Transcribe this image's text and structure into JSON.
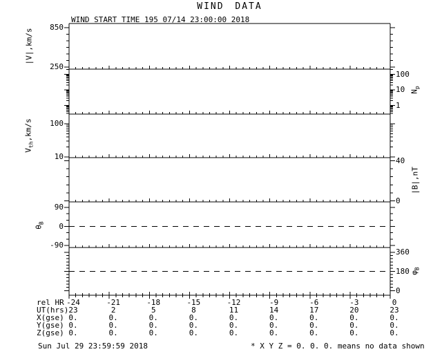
{
  "title": "WIND DATA",
  "subtitle": "WIND START TIME 195 07/14 23:00:00 2018",
  "footer": {
    "timestamp": "Sun Jul 29 23:59:59 2018",
    "note": "* X Y Z = 0. 0. 0. means no data shown"
  },
  "chart_data": {
    "type": "line",
    "title": "WIND DATA",
    "subtitle": "WIND START TIME 195 07/14 23:00:00 2018",
    "grid": false,
    "x_axis": {
      "range_hours": [
        -24,
        0
      ],
      "major_step_hours": 3,
      "minor_step_hours": 0.5
    },
    "panels": [
      {
        "name": "bulk-speed",
        "ylabel_parts": [
          [
            "|V|,km/s",
            false
          ]
        ],
        "label_side": "left",
        "scale": "linear",
        "tick_values": [
          "850",
          "250"
        ],
        "series": [],
        "data_plotted": false
      },
      {
        "name": "proton-density",
        "ylabel_parts": [
          [
            "N",
            false
          ],
          [
            "p",
            true
          ]
        ],
        "label_side": "right",
        "scale": "log",
        "tick_values": [
          "100",
          "10",
          "1"
        ],
        "series": [],
        "data_plotted": false
      },
      {
        "name": "thermal-speed",
        "ylabel_parts": [
          [
            "V",
            false
          ],
          [
            "th",
            true
          ],
          [
            ",km/s",
            false
          ]
        ],
        "label_side": "left",
        "scale": "log",
        "tick_values": [
          "100",
          "10"
        ],
        "series": [],
        "data_plotted": false
      },
      {
        "name": "field-magnitude",
        "ylabel_parts": [
          [
            "|B|,nT",
            false
          ]
        ],
        "label_side": "right",
        "scale": "linear",
        "tick_values": [
          "40",
          "0"
        ],
        "series": [],
        "data_plotted": false
      },
      {
        "name": "field-theta",
        "ylabel_parts": [
          [
            "θ",
            false
          ],
          [
            "B",
            true
          ]
        ],
        "label_side": "left",
        "scale": "linear",
        "tick_values": [
          "90",
          "0",
          "-90"
        ],
        "dashed_reference": "0",
        "series": [],
        "data_plotted": false
      },
      {
        "name": "field-phi",
        "ylabel_parts": [
          [
            "φ",
            false
          ],
          [
            "B",
            true
          ]
        ],
        "label_side": "right",
        "scale": "linear",
        "tick_values": [
          "360",
          "180",
          "0"
        ],
        "dashed_reference": "180",
        "series": [],
        "data_plotted": false
      }
    ],
    "bottom_axis_rows": [
      {
        "label": "rel HR",
        "values": [
          "-24",
          "-21",
          "-18",
          "-15",
          "-12",
          "-9",
          "-6",
          "-3",
          "0"
        ]
      },
      {
        "label": "UT(hrs)",
        "values": [
          "23",
          "2",
          "5",
          "8",
          "11",
          "14",
          "17",
          "20",
          "23"
        ]
      },
      {
        "label": "X(gse)",
        "values": [
          "0.",
          "0.",
          "0.",
          "0.",
          "0.",
          "0.",
          "0.",
          "0.",
          "0."
        ]
      },
      {
        "label": "Y(gse)",
        "values": [
          "0.",
          "0.",
          "0.",
          "0.",
          "0.",
          "0.",
          "0.",
          "0.",
          "0."
        ]
      },
      {
        "label": "Z(gse)",
        "values": [
          "0.",
          "0.",
          "0.",
          "0.",
          "0.",
          "0.",
          "0.",
          "0.",
          "0."
        ]
      }
    ],
    "note": "no data plotted in any panel",
    "colors": {
      "foreground": "#000000",
      "background": "#ffffff"
    }
  }
}
